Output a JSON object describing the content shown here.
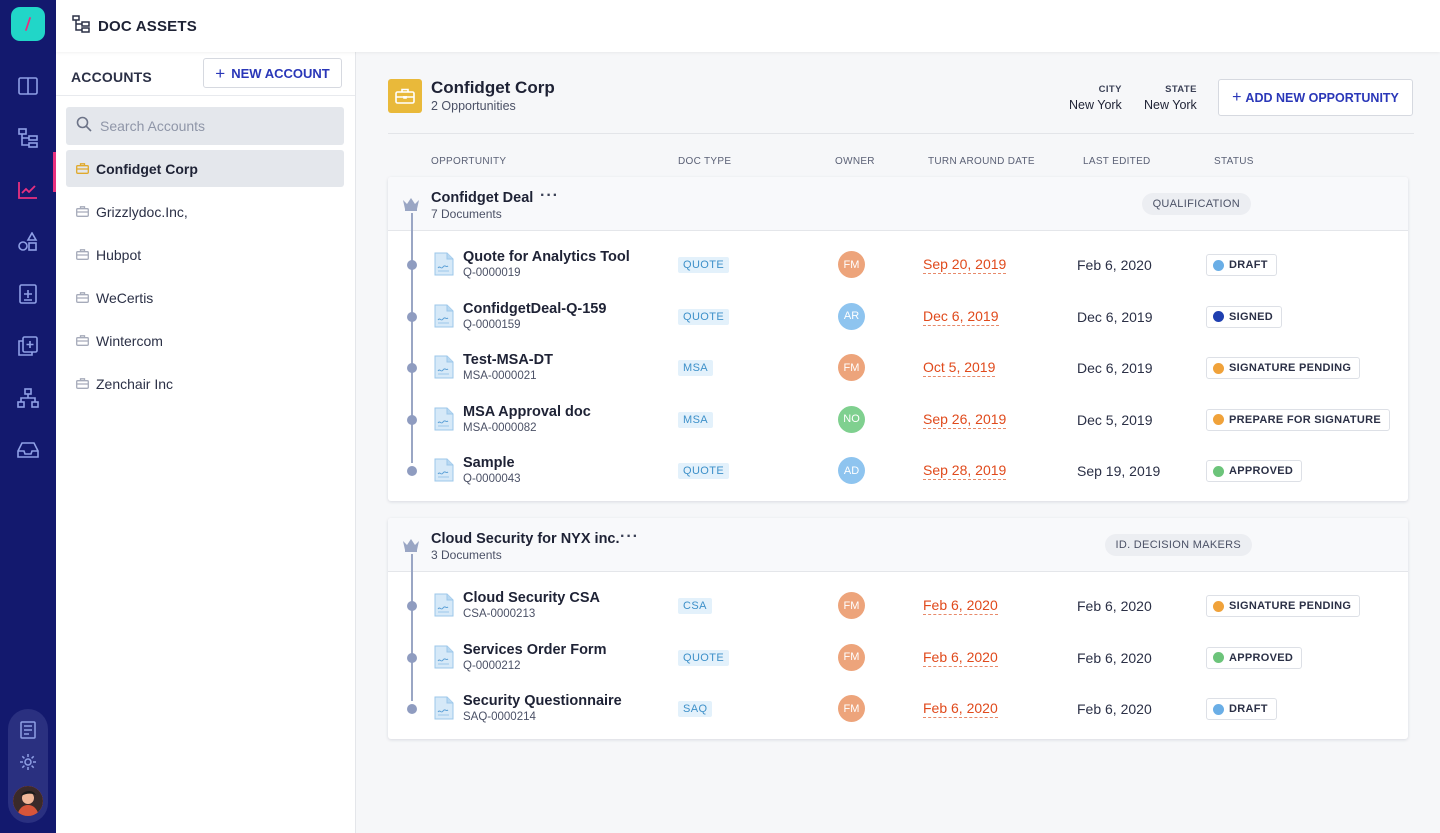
{
  "app": {
    "title": "DOC ASSETS"
  },
  "rail": {
    "icons": [
      "logo-icon",
      "columns-icon",
      "hierarchy-icon",
      "analytics-icon",
      "shapes-icon",
      "document-plus-icon",
      "copy-plus-icon",
      "network-icon",
      "inbox-icon",
      "notes-icon",
      "settings-icon",
      "avatar"
    ],
    "accent": "#e8307f",
    "background": "#13196e",
    "logo_color": "#21d6c8"
  },
  "accounts": {
    "heading": "ACCOUNTS",
    "new_button": "NEW ACCOUNT",
    "search_placeholder": "Search Accounts",
    "items": [
      {
        "label": "Confidget Corp",
        "active": true
      },
      {
        "label": "Grizzlydoc.Inc,",
        "active": false
      },
      {
        "label": "Hubpot",
        "active": false
      },
      {
        "label": "WeCertis",
        "active": false
      },
      {
        "label": "Wintercom",
        "active": false
      },
      {
        "label": "Zenchair Inc",
        "active": false
      }
    ]
  },
  "account": {
    "name": "Confidget Corp",
    "subtitle": "2 Opportunities",
    "city_label": "CITY",
    "city": "New York",
    "state_label": "STATE",
    "state": "New York",
    "add_button": "ADD NEW OPPORTUNITY"
  },
  "columns": [
    "OPPORTUNITY",
    "DOC TYPE",
    "OWNER",
    "TURN AROUND DATE",
    "LAST EDITED",
    "STATUS"
  ],
  "opportunities": [
    {
      "name": "Confidget Deal",
      "documents": "7 Documents",
      "stage": "QUALIFICATION",
      "rows": [
        {
          "title": "Quote for Analytics Tool",
          "id": "Q-0000019",
          "type": "QUOTE",
          "owner": "FM",
          "tat": "Sep 20, 2019",
          "edited": "Feb 6, 2020",
          "status": "DRAFT"
        },
        {
          "title": "ConfidgetDeal-Q-159",
          "id": "Q-0000159",
          "type": "QUOTE",
          "owner": "AR",
          "tat": "Dec 6, 2019",
          "edited": "Dec 6, 2019",
          "status": "SIGNED"
        },
        {
          "title": "Test-MSA-DT",
          "id": "MSA-0000021",
          "type": "MSA",
          "owner": "FM",
          "tat": "Oct 5, 2019",
          "edited": "Dec 6, 2019",
          "status": "SIGNATURE PENDING"
        },
        {
          "title": "MSA Approval doc",
          "id": "MSA-0000082",
          "type": "MSA",
          "owner": "NO",
          "tat": "Sep 26, 2019",
          "edited": "Dec 5, 2019",
          "status": "PREPARE FOR SIGNATURE"
        },
        {
          "title": "Sample",
          "id": "Q-0000043",
          "type": "QUOTE",
          "owner": "AD",
          "tat": "Sep 28, 2019",
          "edited": "Sep 19, 2019",
          "status": "APPROVED"
        }
      ]
    },
    {
      "name": "Cloud Security for NYX inc.",
      "documents": "3 Documents",
      "stage": "ID. DECISION MAKERS",
      "rows": [
        {
          "title": "Cloud Security CSA",
          "id": "CSA-0000213",
          "type": "CSA",
          "owner": "FM",
          "tat": "Feb 6, 2020",
          "edited": "Feb 6, 2020",
          "status": "SIGNATURE PENDING"
        },
        {
          "title": "Services Order Form",
          "id": "Q-0000212",
          "type": "QUOTE",
          "owner": "FM",
          "tat": "Feb 6, 2020",
          "edited": "Feb 6, 2020",
          "status": "APPROVED"
        },
        {
          "title": "Security Questionnaire",
          "id": "SAQ-0000214",
          "type": "SAQ",
          "owner": "FM",
          "tat": "Feb 6, 2020",
          "edited": "Feb 6, 2020",
          "status": "DRAFT"
        }
      ]
    }
  ],
  "colors": {
    "status": {
      "DRAFT": "#6aaee6",
      "SIGNED": "#1f3fb0",
      "SIGNATURE PENDING": "#f0a23a",
      "PREPARE FOR SIGNATURE": "#f0a23a",
      "APPROVED": "#6cc47a"
    },
    "owner": {
      "FM": "#eda47b",
      "AR": "#8ec4ef",
      "NO": "#7fd08f",
      "AD": "#8ec4ef"
    },
    "accent_blue": "#2a37b8",
    "date_red": "#e04a1c"
  }
}
